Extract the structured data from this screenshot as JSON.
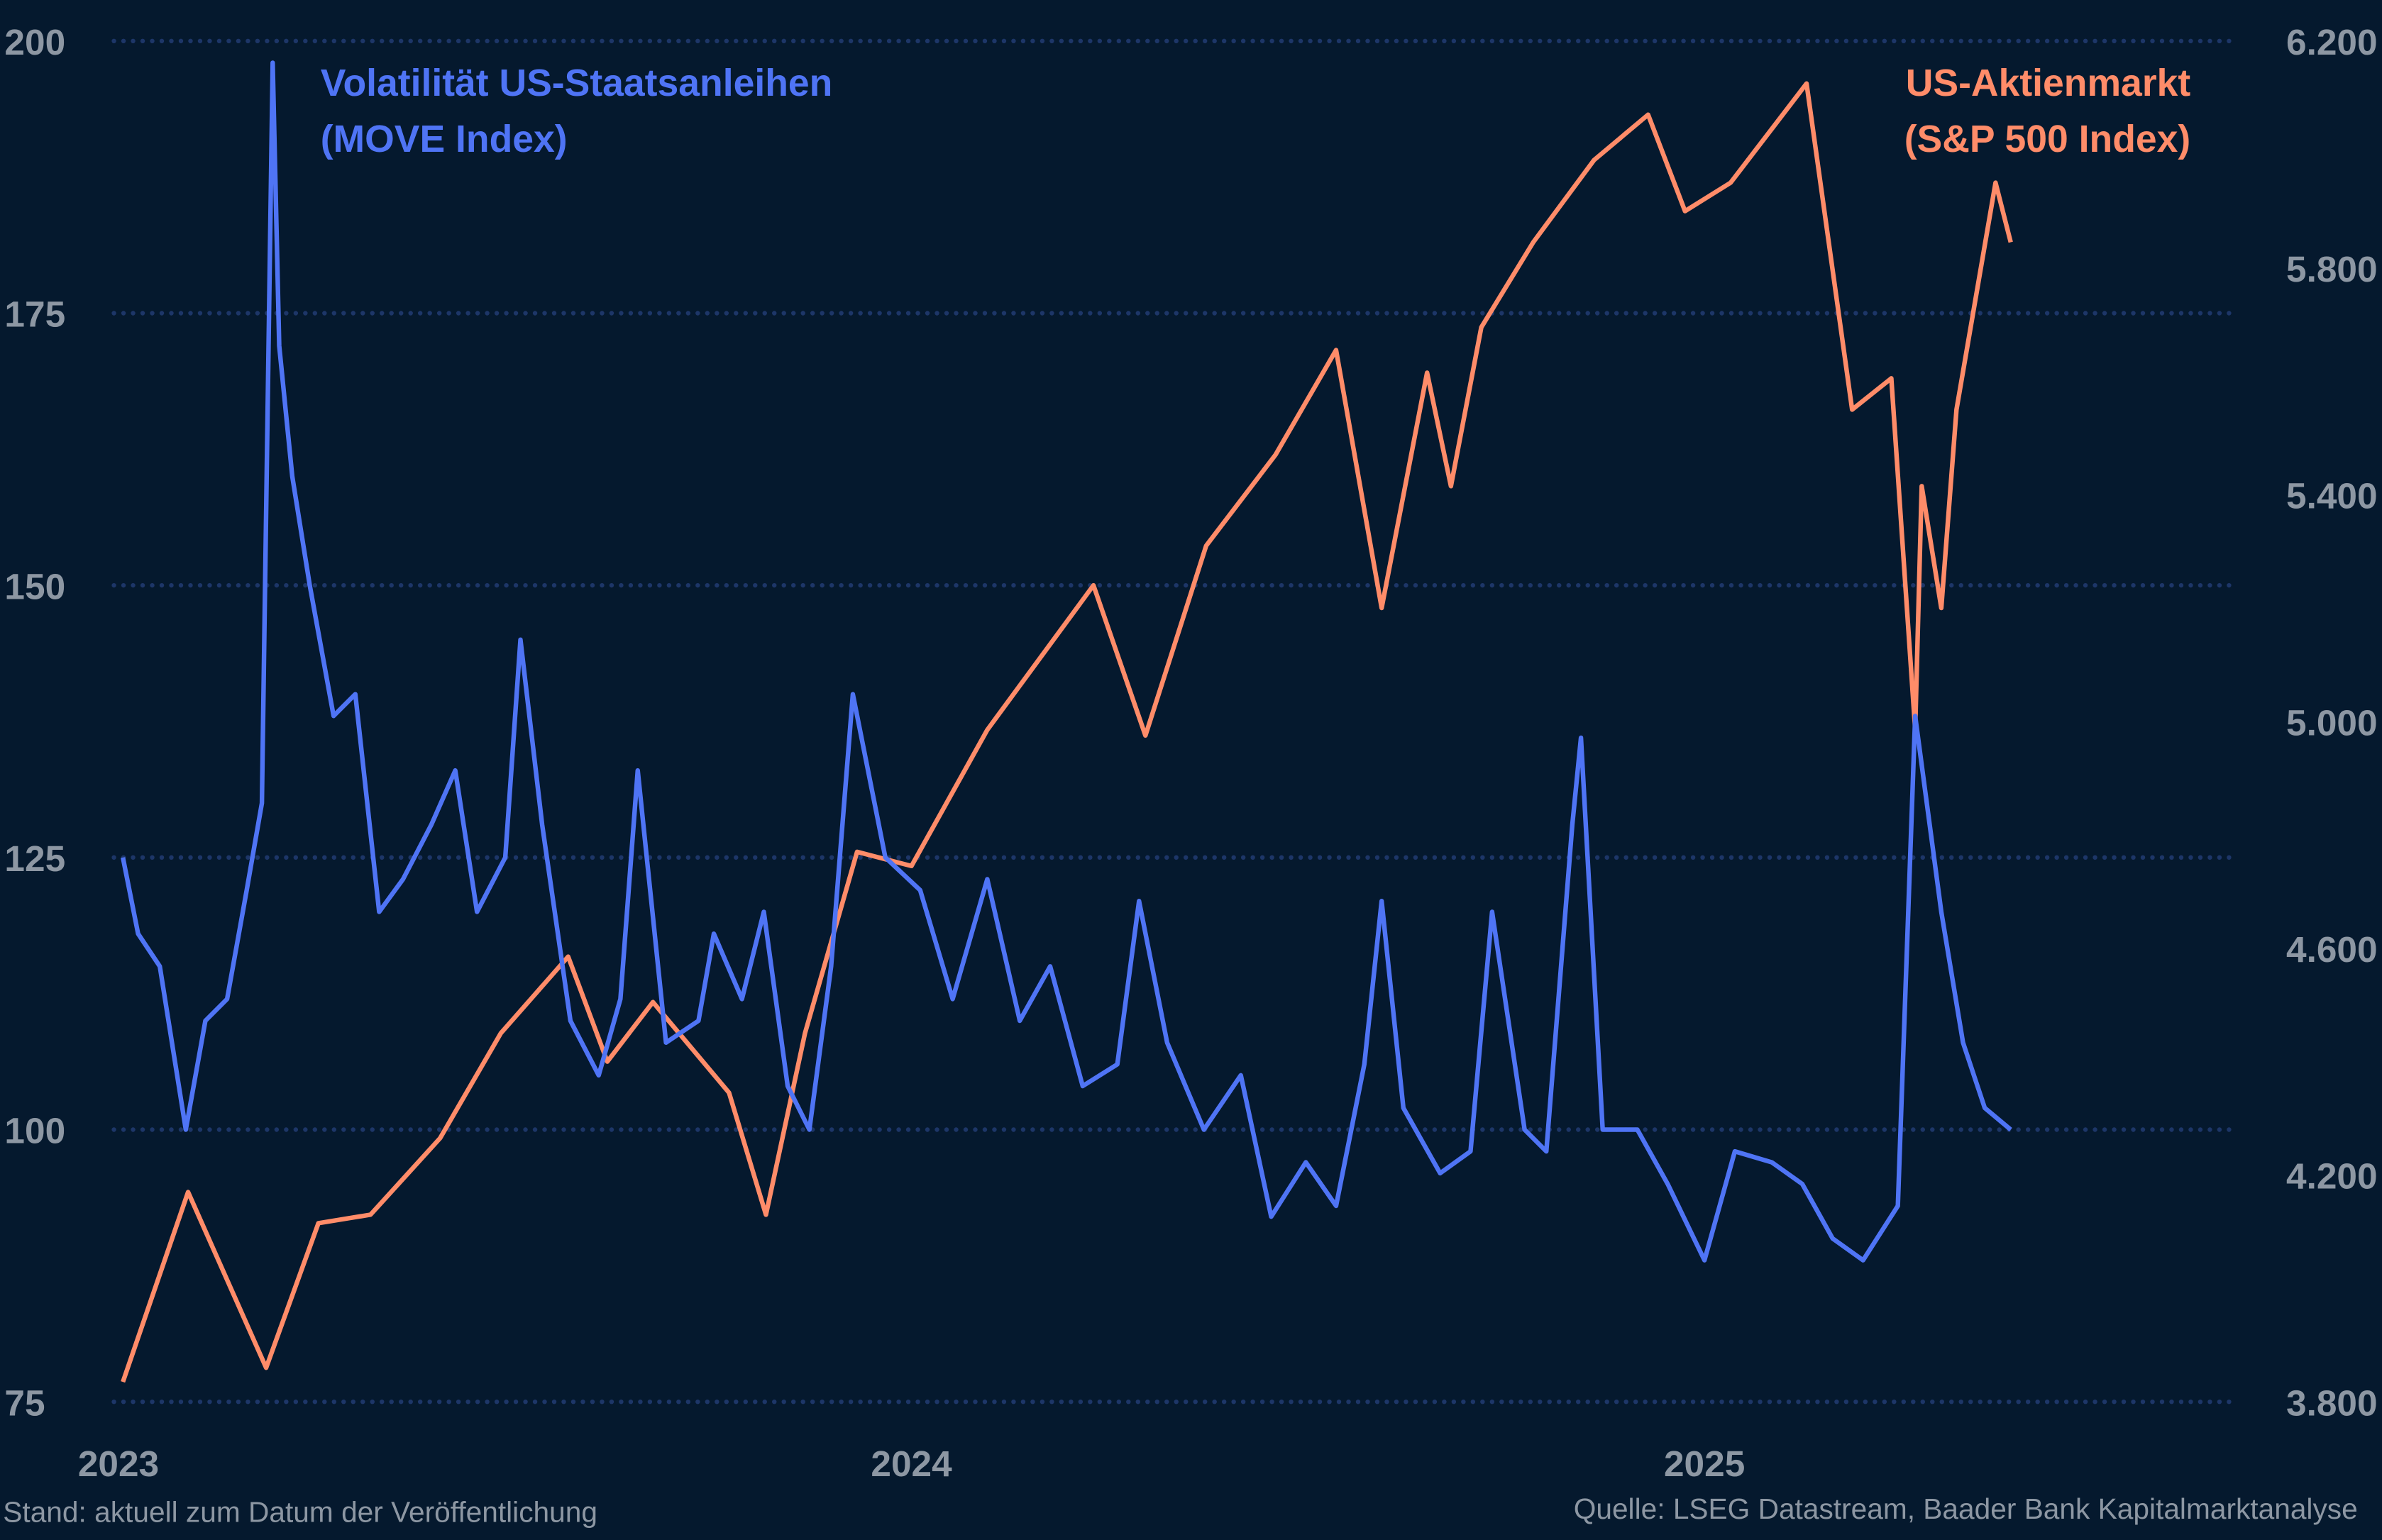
{
  "chart_data": {
    "type": "line",
    "title": "",
    "xlabel": "",
    "ylabel_left": "",
    "ylabel_right": "",
    "x_ticks": [
      "2023",
      "2024",
      "2025"
    ],
    "y_left": {
      "lim": [
        75,
        200
      ],
      "ticks": [
        "75",
        "100",
        "125",
        "150",
        "175",
        "200"
      ]
    },
    "y_right": {
      "lim": [
        3800,
        6200
      ],
      "ticks": [
        "3.800",
        "4.200",
        "4.600",
        "5.000",
        "5.400",
        "5.800",
        "6.200"
      ]
    },
    "grid": "horizontal dotted",
    "colors": {
      "background": "#05192e",
      "move": "#4f74f5",
      "sp500": "#ff8c69",
      "grid": "#1d3668",
      "text": "#8d97a3"
    },
    "series": [
      {
        "name": "Volatilität US-Staatsanleihen (MOVE Index)",
        "label_lines": [
          "Volatilität US-Staatsanleihen",
          "(MOVE Index)"
        ],
        "axis": "left",
        "x": [
          "2023-01-03",
          "2023-01-10",
          "2023-01-20",
          "2023-02-01",
          "2023-02-10",
          "2023-02-20",
          "2023-03-01",
          "2023-03-08",
          "2023-03-13",
          "2023-03-16",
          "2023-03-22",
          "2023-03-30",
          "2023-04-10",
          "2023-04-20",
          "2023-05-01",
          "2023-05-12",
          "2023-05-25",
          "2023-06-05",
          "2023-06-15",
          "2023-06-28",
          "2023-07-05",
          "2023-07-15",
          "2023-07-28",
          "2023-08-10",
          "2023-08-20",
          "2023-08-28",
          "2023-09-10",
          "2023-09-25",
          "2023-10-02",
          "2023-10-15",
          "2023-10-25",
          "2023-11-05",
          "2023-11-15",
          "2023-11-25",
          "2023-12-05",
          "2023-12-20",
          "2024-01-05",
          "2024-01-20",
          "2024-02-05",
          "2024-02-20",
          "2024-03-05",
          "2024-03-20",
          "2024-04-05",
          "2024-04-15",
          "2024-04-28",
          "2024-05-15",
          "2024-06-01",
          "2024-06-15",
          "2024-07-01",
          "2024-07-15",
          "2024-07-28",
          "2024-08-05",
          "2024-08-15",
          "2024-09-01",
          "2024-09-15",
          "2024-09-25",
          "2024-10-10",
          "2024-10-20",
          "2024-11-01",
          "2024-11-05",
          "2024-11-15",
          "2024-12-01",
          "2024-12-15",
          "2025-01-01",
          "2025-01-15",
          "2025-02-01",
          "2025-02-15",
          "2025-03-01",
          "2025-03-15",
          "2025-03-31",
          "2025-04-08",
          "2025-04-20",
          "2025-04-30",
          "2025-05-10",
          "2025-05-22"
        ],
        "values": [
          125,
          118,
          115,
          100,
          110,
          112,
          122,
          130,
          198,
          172,
          160,
          150,
          138,
          140,
          120,
          123,
          128,
          133,
          120,
          125,
          145,
          128,
          110,
          105,
          112,
          133,
          108,
          110,
          118,
          112,
          120,
          104,
          100,
          115,
          140,
          125,
          122,
          112,
          123,
          110,
          115,
          104,
          106,
          121,
          108,
          100,
          105,
          92,
          97,
          93,
          106,
          121,
          102,
          96,
          98,
          120,
          100,
          98,
          128,
          136,
          100,
          100,
          95,
          88,
          98,
          97,
          95,
          90,
          88,
          93,
          138,
          120,
          108,
          102,
          100
        ]
      },
      {
        "name": "US-Aktienmarkt (S&P 500 Index)",
        "label_lines": [
          "US-Aktienmarkt",
          "(S&P 500 Index)"
        ],
        "axis": "right",
        "x": [
          "2023-01-03",
          "2023-02-02",
          "2023-03-10",
          "2023-04-03",
          "2023-04-27",
          "2023-05-29",
          "2023-06-26",
          "2023-07-27",
          "2023-08-14",
          "2023-09-04",
          "2023-10-09",
          "2023-10-26",
          "2023-11-13",
          "2023-12-07",
          "2024-01-01",
          "2024-02-05",
          "2024-03-25",
          "2024-04-18",
          "2024-05-16",
          "2024-06-17",
          "2024-07-15",
          "2024-08-05",
          "2024-08-26",
          "2024-09-06",
          "2024-09-20",
          "2024-10-14",
          "2024-11-11",
          "2024-12-06",
          "2024-12-23",
          "2025-01-13",
          "2025-02-17",
          "2025-03-10",
          "2025-03-28",
          "2025-04-08",
          "2025-04-11",
          "2025-04-20",
          "2025-04-27",
          "2025-05-15",
          "2025-05-22"
        ],
        "values": [
          3835,
          4170,
          3860,
          4115,
          4130,
          4265,
          4450,
          4585,
          4400,
          4505,
          4345,
          4130,
          4450,
          4770,
          4745,
          4985,
          5240,
          4975,
          5310,
          5470,
          5655,
          5200,
          5615,
          5415,
          5695,
          5845,
          5990,
          6070,
          5900,
          5950,
          6125,
          5550,
          5605,
          4985,
          5415,
          5200,
          5550,
          5950,
          5845
        ]
      }
    ]
  },
  "footer": {
    "left": "Stand: aktuell zum Datum der Veröffentlichung",
    "right": "Quelle: LSEG Datastream, Baader Bank Kapitalmarktanalyse"
  }
}
